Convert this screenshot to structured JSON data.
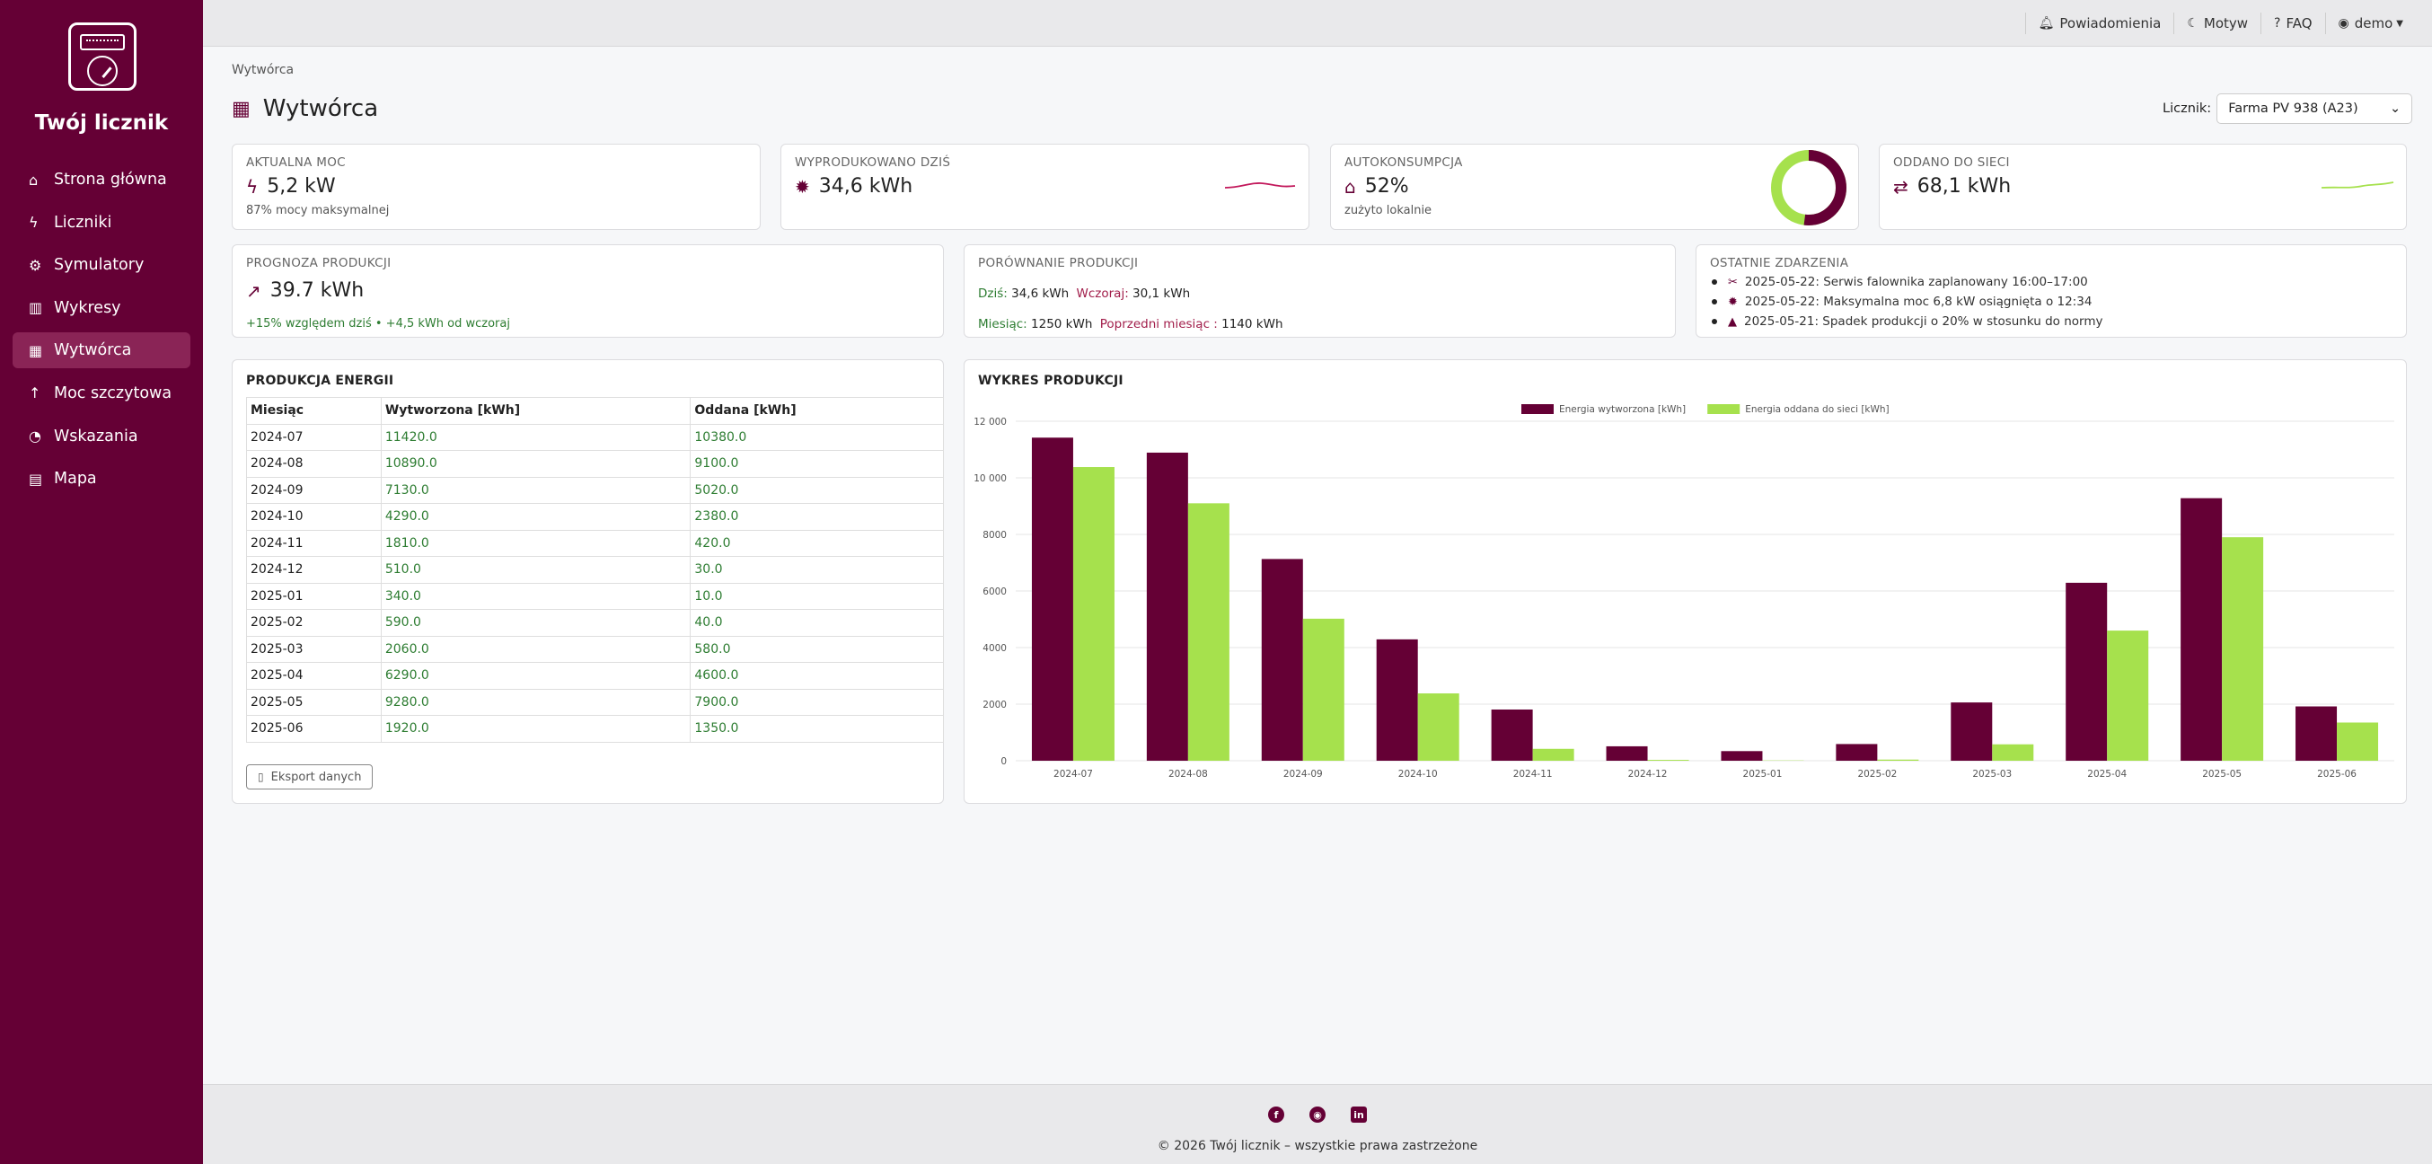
{
  "sidebar": {
    "brand": "Twój licznik",
    "items": [
      {
        "label": "Strona główna",
        "icon": "⌂"
      },
      {
        "label": "Liczniki",
        "icon": "ϟ"
      },
      {
        "label": "Symulatory",
        "icon": "⚙"
      },
      {
        "label": "Wykresy",
        "icon": "▥"
      },
      {
        "label": "Wytwórca",
        "icon": "▦"
      },
      {
        "label": "Moc szczytowa",
        "icon": "↑"
      },
      {
        "label": "Wskazania",
        "icon": "◔"
      },
      {
        "label": "Mapa",
        "icon": "▤"
      }
    ]
  },
  "topbar": {
    "notifications": "Powiadomienia",
    "theme": "Motyw",
    "faq": "FAQ",
    "user": "demo"
  },
  "breadcrumb": "Wytwórca",
  "page_title": "Wytwórca",
  "meter": {
    "label": "Licznik:",
    "value": "Farma PV 938 (A23)"
  },
  "cards": {
    "power": {
      "label": "AKTUALNA MOC",
      "value": "5,2 kW",
      "sub": "87% mocy maksymalnej"
    },
    "produced": {
      "label": "WYPRODUKOWANO DZIŚ",
      "value": "34,6 kWh"
    },
    "autocons": {
      "label": "AUTOKONSUMPCJA",
      "value": "52%",
      "sub": "zużyto lokalnie",
      "percent": 52
    },
    "returned": {
      "label": "ODDANO DO SIECI",
      "value": "68,1 kWh"
    },
    "forecast": {
      "label": "PROGNOZA PRODUKCJI",
      "value": "39.7 kWh",
      "sub": "+15% względem dziś • +4,5 kWh od wczoraj"
    },
    "compare": {
      "label": "PORÓWNANIE PRODUKCJI",
      "today_label": "Dziś:",
      "today": "34,6 kWh",
      "yesterday_label": "Wczoraj:",
      "yesterday": "30,1 kWh",
      "month_label": "Miesiąc:",
      "month": "1250 kWh",
      "prev_month_label": "Poprzedni miesiąc :",
      "prev_month": "1140 kWh"
    },
    "events": {
      "label": "OSTATNIE ZDARZENIA",
      "items": [
        {
          "icon": "✂",
          "text": "2025-05-22: Serwis falownika zaplanowany 16:00–17:00"
        },
        {
          "icon": "✹",
          "text": "2025-05-22: Maksymalna moc 6,8 kW osiągnięta o 12:34"
        },
        {
          "icon": "▲",
          "text": "2025-05-21: Spadek produkcji o 20% w stosunku do normy"
        }
      ]
    }
  },
  "table": {
    "title": "PRODUKCJA ENERGII",
    "headers": [
      "Miesiąc",
      "Wytworzona [kWh]",
      "Oddana [kWh]"
    ],
    "rows": [
      [
        "2024-07",
        "11420.0",
        "10380.0"
      ],
      [
        "2024-08",
        "10890.0",
        "9100.0"
      ],
      [
        "2024-09",
        "7130.0",
        "5020.0"
      ],
      [
        "2024-10",
        "4290.0",
        "2380.0"
      ],
      [
        "2024-11",
        "1810.0",
        "420.0"
      ],
      [
        "2024-12",
        "510.0",
        "30.0"
      ],
      [
        "2025-01",
        "340.0",
        "10.0"
      ],
      [
        "2025-02",
        "590.0",
        "40.0"
      ],
      [
        "2025-03",
        "2060.0",
        "580.0"
      ],
      [
        "2025-04",
        "6290.0",
        "4600.0"
      ],
      [
        "2025-05",
        "9280.0",
        "7900.0"
      ],
      [
        "2025-06",
        "1920.0",
        "1350.0"
      ]
    ],
    "export_label": "Eksport danych"
  },
  "chart_title": "WYKRES PRODUKCJI",
  "chart_data": {
    "type": "bar",
    "categories": [
      "2024-07",
      "2024-08",
      "2024-09",
      "2024-10",
      "2024-11",
      "2024-12",
      "2025-01",
      "2025-02",
      "2025-03",
      "2025-04",
      "2025-05",
      "2025-06"
    ],
    "series": [
      {
        "name": "Energia wytworzona [kWh]",
        "color": "#650035",
        "values": [
          11420,
          10890,
          7130,
          4290,
          1810,
          510,
          340,
          590,
          2060,
          6290,
          9280,
          1920
        ]
      },
      {
        "name": "Energia oddana do sieci [kWh]",
        "color": "#a6e14d",
        "values": [
          10380,
          9100,
          5020,
          2380,
          420,
          30,
          10,
          40,
          580,
          4600,
          7900,
          1350
        ]
      }
    ],
    "yticks": [
      "0",
      "2000",
      "4000",
      "6000",
      "8000",
      "10 000",
      "12 000"
    ],
    "ylim": [
      0,
      12000
    ],
    "grid": true,
    "legend": "top-center"
  },
  "footer": {
    "copyright": "© 2026 Twój licznik – wszystkie prawa zastrzeżone",
    "socials": [
      {
        "name": "facebook",
        "glyph": "f"
      },
      {
        "name": "github",
        "glyph": "◉"
      },
      {
        "name": "linkedin",
        "glyph": "in"
      }
    ]
  },
  "colors": {
    "brand": "#650035",
    "accent_green": "#a6e14d",
    "spark_pink": "#c2185b"
  }
}
